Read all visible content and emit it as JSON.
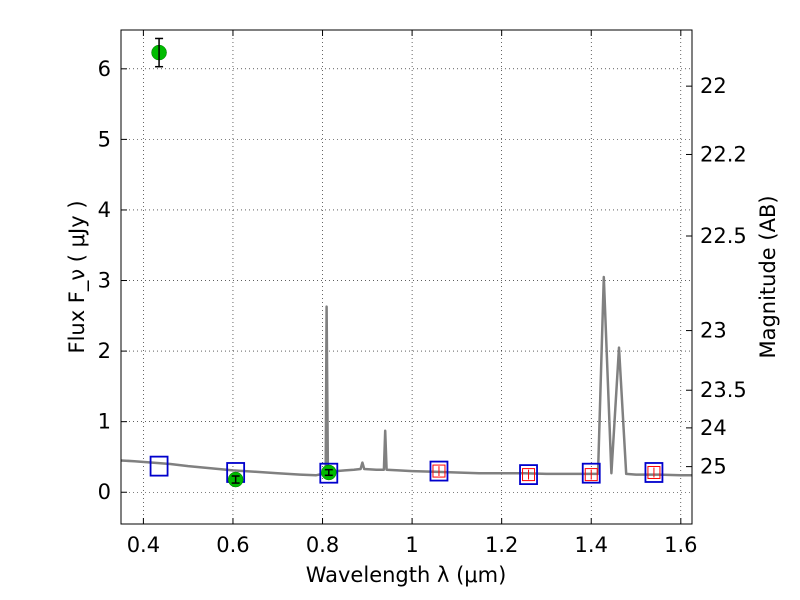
{
  "chart_data": {
    "type": "scatter",
    "xlabel": "Wavelength  λ (μm)",
    "ylabel": "Flux  F_ν  ( μJy )",
    "y2label": "Magnitude (AB)",
    "xlim": [
      0.35,
      1.625
    ],
    "ylim": [
      -0.45,
      6.55
    ],
    "grid": true,
    "x_ticks": [
      0.4,
      0.6,
      0.8,
      1.0,
      1.2,
      1.4,
      1.6
    ],
    "x_tick_labels": [
      "0.4",
      "0.6",
      "0.8",
      "1",
      "1.2",
      "1.4",
      "1.6"
    ],
    "y_ticks": [
      0,
      1,
      2,
      3,
      4,
      5,
      6
    ],
    "y_tick_labels": [
      "0",
      "1",
      "2",
      "3",
      "4",
      "5",
      "6"
    ],
    "y2_ticks": [
      22,
      22.2,
      22.5,
      23,
      23.5,
      24,
      25
    ],
    "y2_tick_labels": [
      "22",
      "22.2",
      "22.5",
      "23",
      "23.5",
      "24",
      "25"
    ],
    "series": [
      {
        "kind": "model_spectrum",
        "color": "#808080",
        "points": [
          [
            0.35,
            0.45
          ],
          [
            0.38,
            0.44
          ],
          [
            0.42,
            0.42
          ],
          [
            0.46,
            0.4
          ],
          [
            0.5,
            0.37
          ],
          [
            0.55,
            0.34
          ],
          [
            0.6,
            0.31
          ],
          [
            0.65,
            0.29
          ],
          [
            0.7,
            0.27
          ],
          [
            0.75,
            0.25
          ],
          [
            0.785,
            0.24
          ],
          [
            0.8,
            0.26
          ],
          [
            0.807,
            0.28
          ],
          [
            0.809,
            2.63
          ],
          [
            0.812,
            0.3
          ],
          [
            0.83,
            0.3
          ],
          [
            0.85,
            0.31
          ],
          [
            0.87,
            0.32
          ],
          [
            0.885,
            0.33
          ],
          [
            0.889,
            0.42
          ],
          [
            0.893,
            0.33
          ],
          [
            0.92,
            0.32
          ],
          [
            0.937,
            0.32
          ],
          [
            0.94,
            0.87
          ],
          [
            0.943,
            0.32
          ],
          [
            0.97,
            0.31
          ],
          [
            1.0,
            0.3
          ],
          [
            1.05,
            0.29
          ],
          [
            1.1,
            0.28
          ],
          [
            1.15,
            0.27
          ],
          [
            1.2,
            0.27
          ],
          [
            1.25,
            0.27
          ],
          [
            1.3,
            0.26
          ],
          [
            1.35,
            0.26
          ],
          [
            1.4,
            0.26
          ],
          [
            1.415,
            0.26
          ],
          [
            1.428,
            3.05
          ],
          [
            1.445,
            0.27
          ],
          [
            1.462,
            2.05
          ],
          [
            1.478,
            0.26
          ],
          [
            1.5,
            0.25
          ],
          [
            1.55,
            0.25
          ],
          [
            1.6,
            0.24
          ],
          [
            1.625,
            0.24
          ]
        ]
      },
      {
        "kind": "model_photometry",
        "marker": "square",
        "color": "#0000cc",
        "points": [
          [
            0.435,
            0.37
          ],
          [
            0.606,
            0.28
          ],
          [
            0.814,
            0.27
          ],
          [
            1.06,
            0.3
          ],
          [
            1.26,
            0.25
          ],
          [
            1.4,
            0.27
          ],
          [
            1.54,
            0.28
          ]
        ]
      },
      {
        "kind": "observed_nir",
        "marker": "square",
        "color": "#ff0000",
        "points": [
          {
            "x": 1.06,
            "y": 0.3,
            "yerr": 0.07
          },
          {
            "x": 1.26,
            "y": 0.25,
            "yerr": 0.07
          },
          {
            "x": 1.4,
            "y": 0.25,
            "yerr": 0.07
          },
          {
            "x": 1.54,
            "y": 0.28,
            "yerr": 0.07
          }
        ]
      },
      {
        "kind": "observed_optical",
        "marker": "circle",
        "color": "#00bb00",
        "points": [
          {
            "x": 0.435,
            "y": 6.23,
            "yerr": 0.2
          },
          {
            "x": 0.606,
            "y": 0.18,
            "yerr": 0.05
          },
          {
            "x": 0.814,
            "y": 0.28,
            "yerr": 0.04
          }
        ]
      }
    ]
  }
}
